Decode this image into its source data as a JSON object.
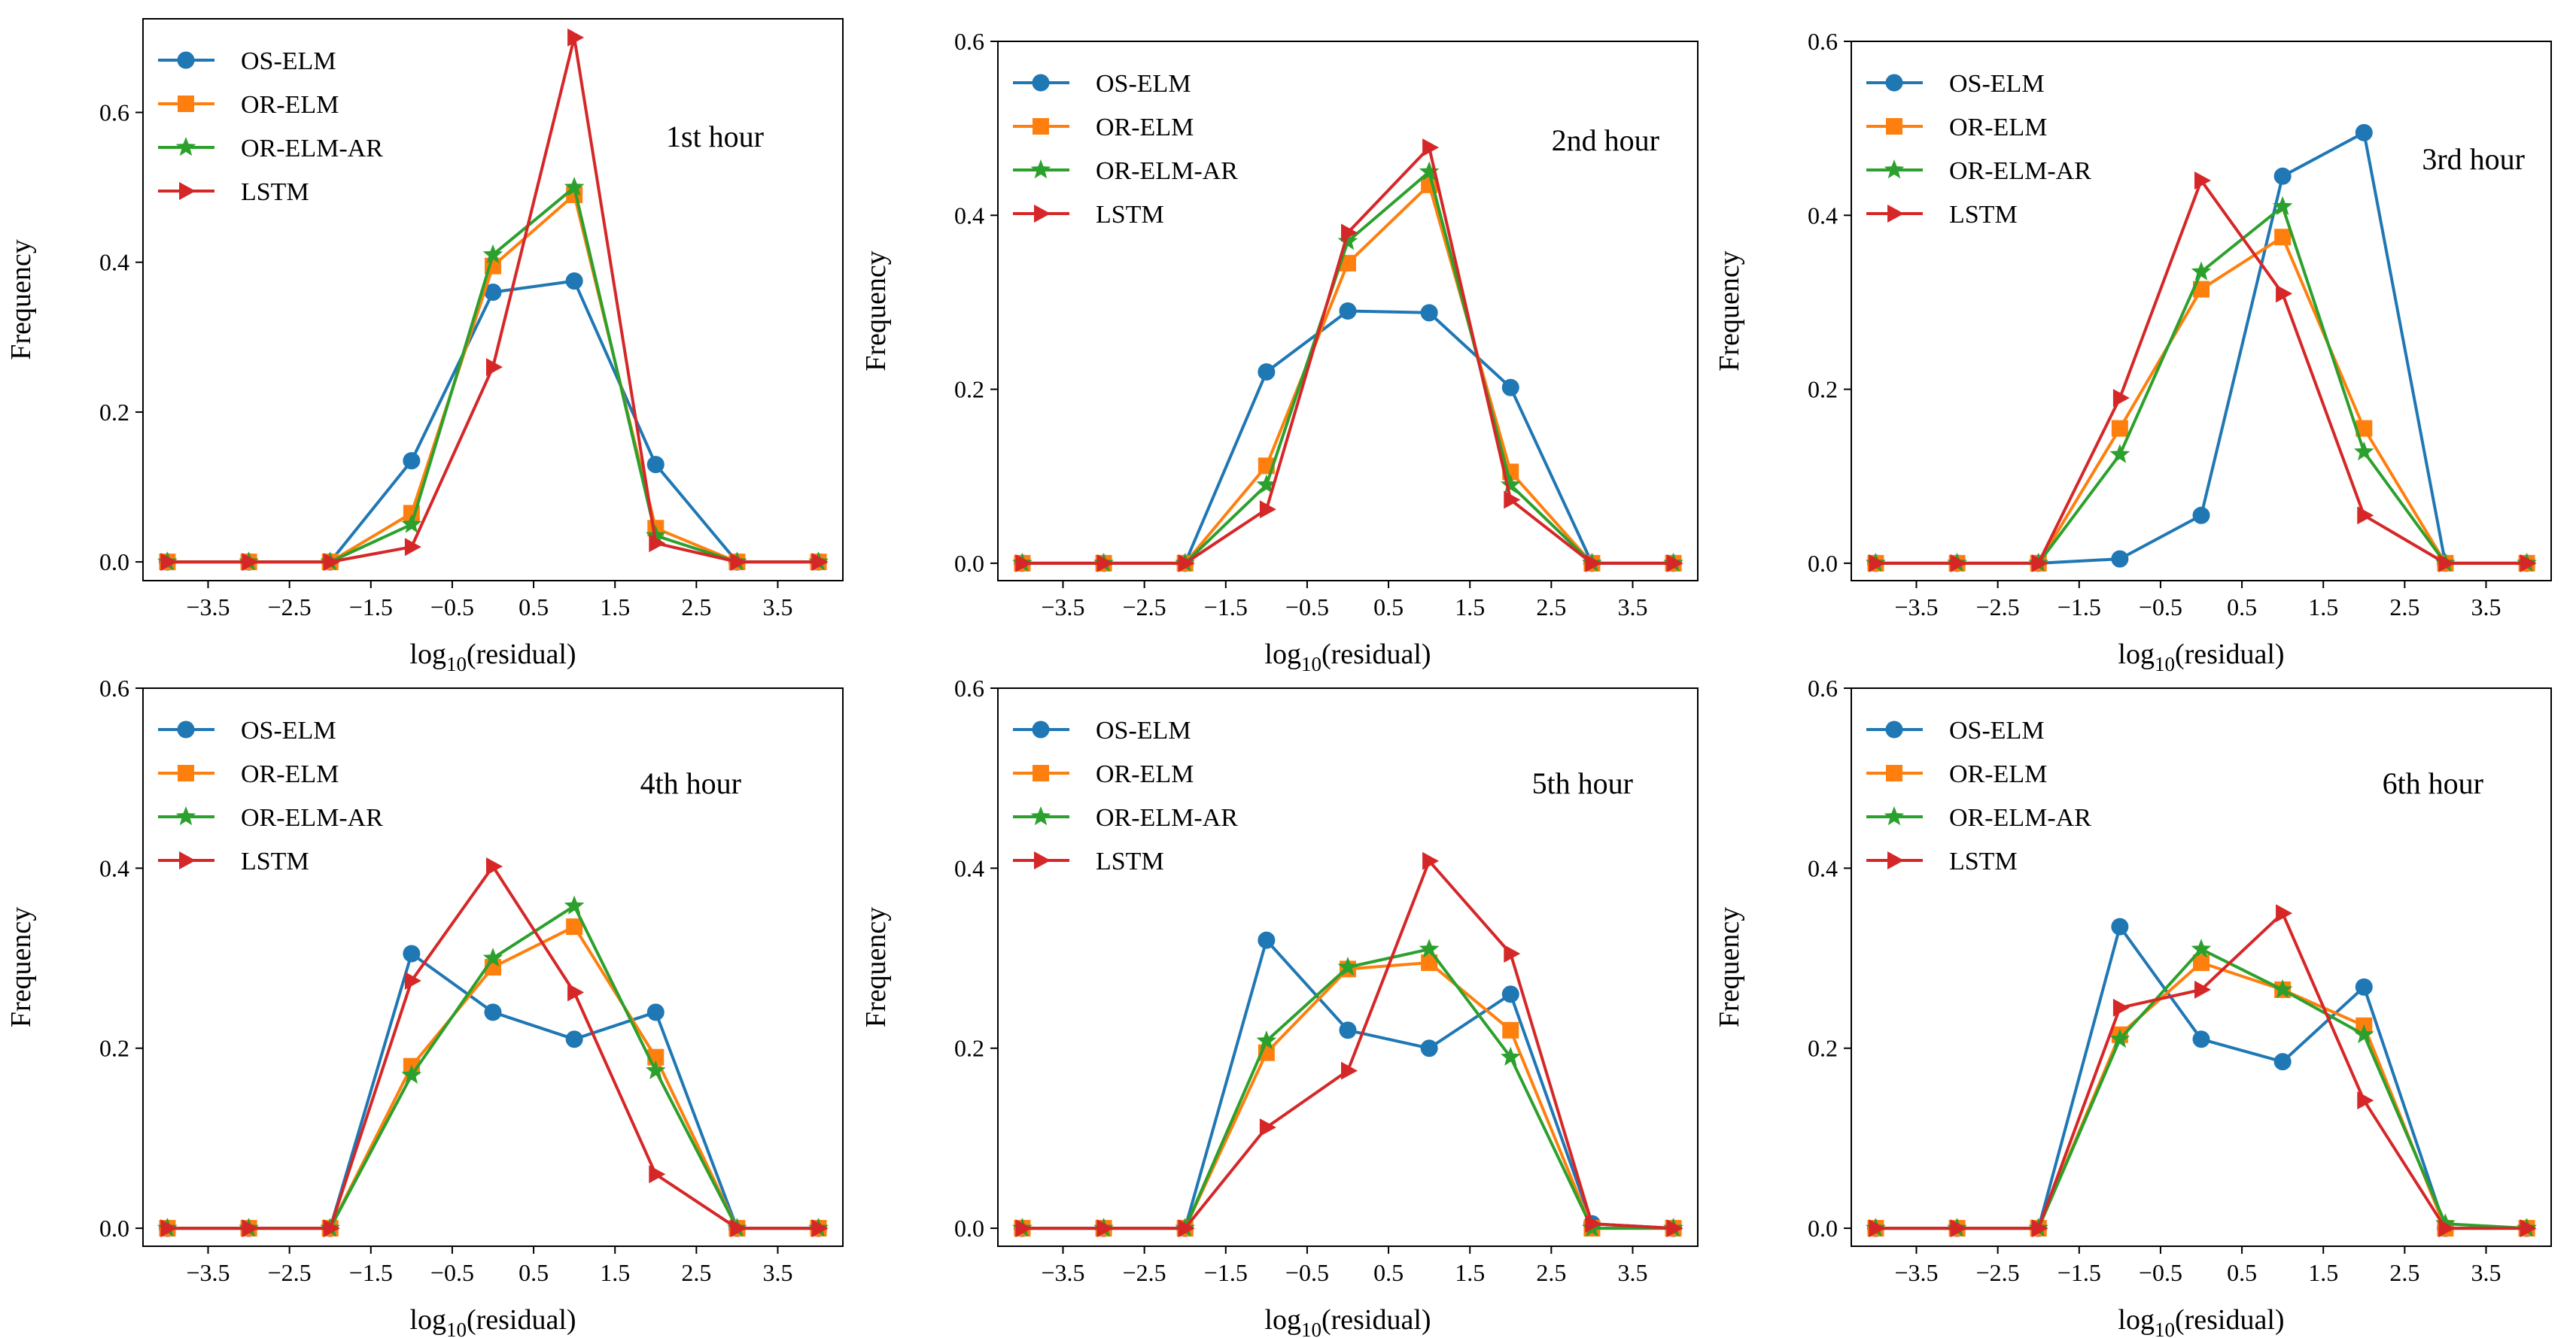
{
  "figure": {
    "legend_location": "upper-left",
    "title_location": "upper-right-inside"
  },
  "series_style": [
    {
      "name": "OS-ELM",
      "color": "#1f77b4",
      "marker": "circle"
    },
    {
      "name": "OR-ELM",
      "color": "#ff7f0e",
      "marker": "square"
    },
    {
      "name": "OR-ELM-AR",
      "color": "#2ca02c",
      "marker": "star"
    },
    {
      "name": "LSTM",
      "color": "#d62728",
      "marker": "triangle-right"
    }
  ],
  "chart_data": [
    {
      "type": "line",
      "title": "1st hour",
      "xlabel_main": "log",
      "xlabel_sub": "10",
      "xlabel_rest": "(residual)",
      "ylabel": "Frequency",
      "x": [
        -4,
        -3,
        -2,
        -1,
        0,
        1,
        2,
        3,
        4
      ],
      "xlim": [
        -4.3,
        4.3
      ],
      "ylim": [
        -0.025,
        0.725
      ],
      "xticks": [
        -3.5,
        -2.5,
        -1.5,
        -0.5,
        0.5,
        1.5,
        2.5,
        3.5
      ],
      "xtick_labels": [
        "−3.5",
        "−2.5",
        "−1.5",
        "−0.5",
        "0.5",
        "1.5",
        "2.5",
        "3.5"
      ],
      "yticks": [
        0.0,
        0.2,
        0.4,
        0.6
      ],
      "ytick_labels": [
        "0.0",
        "0.2",
        "0.4",
        "0.6"
      ],
      "series": [
        {
          "name": "OS-ELM",
          "values": [
            0,
            0,
            0,
            0.135,
            0.36,
            0.375,
            0.13,
            0,
            0
          ]
        },
        {
          "name": "OR-ELM",
          "values": [
            0,
            0,
            0,
            0.065,
            0.395,
            0.49,
            0.045,
            0,
            0
          ]
        },
        {
          "name": "OR-ELM-AR",
          "values": [
            0,
            0,
            0,
            0.05,
            0.41,
            0.5,
            0.035,
            0,
            0
          ]
        },
        {
          "name": "LSTM",
          "values": [
            0,
            0,
            0,
            0.02,
            0.26,
            0.7,
            0.025,
            0,
            0
          ]
        }
      ]
    },
    {
      "type": "line",
      "title": "2nd hour",
      "xlabel_main": "log",
      "xlabel_sub": "10",
      "xlabel_rest": "(residual)",
      "ylabel": "Frequency",
      "x": [
        -4,
        -3,
        -2,
        -1,
        0,
        1,
        2,
        3,
        4
      ],
      "xlim": [
        -4.3,
        4.3
      ],
      "ylim": [
        -0.02,
        0.6
      ],
      "xticks": [
        -3.5,
        -2.5,
        -1.5,
        -0.5,
        0.5,
        1.5,
        2.5,
        3.5
      ],
      "xtick_labels": [
        "−3.5",
        "−2.5",
        "−1.5",
        "−0.5",
        "0.5",
        "1.5",
        "2.5",
        "3.5"
      ],
      "yticks": [
        0.0,
        0.2,
        0.4,
        0.6
      ],
      "ytick_labels": [
        "0.0",
        "0.2",
        "0.4",
        "0.6"
      ],
      "series": [
        {
          "name": "OS-ELM",
          "values": [
            0,
            0,
            0,
            0.22,
            0.29,
            0.288,
            0.202,
            0,
            0
          ]
        },
        {
          "name": "OR-ELM",
          "values": [
            0,
            0,
            0,
            0.112,
            0.345,
            0.435,
            0.105,
            0,
            0
          ]
        },
        {
          "name": "OR-ELM-AR",
          "values": [
            0,
            0,
            0,
            0.09,
            0.37,
            0.45,
            0.09,
            0,
            0
          ]
        },
        {
          "name": "LSTM",
          "values": [
            0,
            0,
            0,
            0.062,
            0.38,
            0.478,
            0.073,
            0,
            0
          ]
        }
      ]
    },
    {
      "type": "line",
      "title": "3rd hour",
      "xlabel_main": "log",
      "xlabel_sub": "10",
      "xlabel_rest": "(residual)",
      "ylabel": "Frequency",
      "x": [
        -4,
        -3,
        -2,
        -1,
        0,
        1,
        2,
        3,
        4
      ],
      "xlim": [
        -4.3,
        4.3
      ],
      "ylim": [
        -0.02,
        0.6
      ],
      "xticks": [
        -3.5,
        -2.5,
        -1.5,
        -0.5,
        0.5,
        1.5,
        2.5,
        3.5
      ],
      "xtick_labels": [
        "−3.5",
        "−2.5",
        "−1.5",
        "−0.5",
        "0.5",
        "1.5",
        "2.5",
        "3.5"
      ],
      "yticks": [
        0.0,
        0.2,
        0.4,
        0.6
      ],
      "ytick_labels": [
        "0.0",
        "0.2",
        "0.4",
        "0.6"
      ],
      "series": [
        {
          "name": "OS-ELM",
          "values": [
            0,
            0,
            0,
            0.005,
            0.055,
            0.445,
            0.495,
            0,
            0
          ]
        },
        {
          "name": "OR-ELM",
          "values": [
            0,
            0,
            0,
            0.155,
            0.315,
            0.375,
            0.155,
            0,
            0
          ]
        },
        {
          "name": "OR-ELM-AR",
          "values": [
            0,
            0,
            0,
            0.125,
            0.335,
            0.41,
            0.128,
            0,
            0
          ]
        },
        {
          "name": "LSTM",
          "values": [
            0,
            0,
            0,
            0.19,
            0.44,
            0.31,
            0.055,
            0,
            0
          ]
        }
      ]
    },
    {
      "type": "line",
      "title": "4th hour",
      "xlabel_main": "log",
      "xlabel_sub": "10",
      "xlabel_rest": "(residual)",
      "ylabel": "Frequency",
      "x": [
        -4,
        -3,
        -2,
        -1,
        0,
        1,
        2,
        3,
        4
      ],
      "xlim": [
        -4.3,
        4.3
      ],
      "ylim": [
        -0.02,
        0.6
      ],
      "xticks": [
        -3.5,
        -2.5,
        -1.5,
        -0.5,
        0.5,
        1.5,
        2.5,
        3.5
      ],
      "xtick_labels": [
        "−3.5",
        "−2.5",
        "−1.5",
        "−0.5",
        "0.5",
        "1.5",
        "2.5",
        "3.5"
      ],
      "yticks": [
        0.0,
        0.2,
        0.4,
        0.6
      ],
      "ytick_labels": [
        "0.0",
        "0.2",
        "0.4",
        "0.6"
      ],
      "series": [
        {
          "name": "OS-ELM",
          "values": [
            0,
            0,
            0,
            0.305,
            0.24,
            0.21,
            0.24,
            0,
            0
          ]
        },
        {
          "name": "OR-ELM",
          "values": [
            0,
            0,
            0,
            0.18,
            0.29,
            0.335,
            0.19,
            0,
            0
          ]
        },
        {
          "name": "OR-ELM-AR",
          "values": [
            0,
            0,
            0,
            0.17,
            0.3,
            0.358,
            0.175,
            0,
            0
          ]
        },
        {
          "name": "LSTM",
          "values": [
            0,
            0,
            0,
            0.275,
            0.402,
            0.262,
            0.06,
            0,
            0
          ]
        }
      ]
    },
    {
      "type": "line",
      "title": "5th hour",
      "xlabel_main": "log",
      "xlabel_sub": "10",
      "xlabel_rest": "(residual)",
      "ylabel": "Frequency",
      "x": [
        -4,
        -3,
        -2,
        -1,
        0,
        1,
        2,
        3,
        4
      ],
      "xlim": [
        -4.3,
        4.3
      ],
      "ylim": [
        -0.02,
        0.6
      ],
      "xticks": [
        -3.5,
        -2.5,
        -1.5,
        -0.5,
        0.5,
        1.5,
        2.5,
        3.5
      ],
      "xtick_labels": [
        "−3.5",
        "−2.5",
        "−1.5",
        "−0.5",
        "0.5",
        "1.5",
        "2.5",
        "3.5"
      ],
      "yticks": [
        0.0,
        0.2,
        0.4,
        0.6
      ],
      "ytick_labels": [
        "0.0",
        "0.2",
        "0.4",
        "0.6"
      ],
      "series": [
        {
          "name": "OS-ELM",
          "values": [
            0,
            0,
            0,
            0.32,
            0.22,
            0.2,
            0.26,
            0.005,
            0
          ]
        },
        {
          "name": "OR-ELM",
          "values": [
            0,
            0,
            0,
            0.195,
            0.288,
            0.295,
            0.22,
            0,
            0
          ]
        },
        {
          "name": "OR-ELM-AR",
          "values": [
            0,
            0,
            0,
            0.208,
            0.29,
            0.31,
            0.19,
            0,
            0
          ]
        },
        {
          "name": "LSTM",
          "values": [
            0,
            0,
            0,
            0.112,
            0.175,
            0.408,
            0.305,
            0.005,
            0
          ]
        }
      ]
    },
    {
      "type": "line",
      "title": "6th hour",
      "xlabel_main": "log",
      "xlabel_sub": "10",
      "xlabel_rest": "(residual)",
      "ylabel": "Frequency",
      "x": [
        -4,
        -3,
        -2,
        -1,
        0,
        1,
        2,
        3,
        4
      ],
      "xlim": [
        -4.3,
        4.3
      ],
      "ylim": [
        -0.02,
        0.6
      ],
      "xticks": [
        -3.5,
        -2.5,
        -1.5,
        -0.5,
        0.5,
        1.5,
        2.5,
        3.5
      ],
      "xtick_labels": [
        "−3.5",
        "−2.5",
        "−1.5",
        "−0.5",
        "0.5",
        "1.5",
        "2.5",
        "3.5"
      ],
      "yticks": [
        0.0,
        0.2,
        0.4,
        0.6
      ],
      "ytick_labels": [
        "0.0",
        "0.2",
        "0.4",
        "0.6"
      ],
      "series": [
        {
          "name": "OS-ELM",
          "values": [
            0,
            0,
            0,
            0.335,
            0.21,
            0.185,
            0.268,
            0,
            0
          ]
        },
        {
          "name": "OR-ELM",
          "values": [
            0,
            0,
            0,
            0.215,
            0.295,
            0.265,
            0.225,
            0,
            0
          ]
        },
        {
          "name": "OR-ELM-AR",
          "values": [
            0,
            0,
            0,
            0.21,
            0.31,
            0.265,
            0.215,
            0.005,
            0
          ]
        },
        {
          "name": "LSTM",
          "values": [
            0,
            0,
            0,
            0.245,
            0.265,
            0.35,
            0.142,
            0,
            0
          ]
        }
      ]
    }
  ]
}
